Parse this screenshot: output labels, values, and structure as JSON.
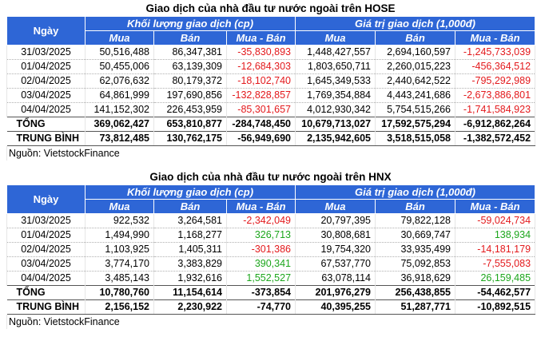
{
  "tables": [
    {
      "title": "Giao dịch của nhà đầu tư nước ngoài trên HOSE",
      "day_header": "Ngày",
      "group1": "Khối lượng giao dịch (cp)",
      "group2": "Giá trị giao dịch (1,000đ)",
      "sub": [
        "Mua",
        "Bán",
        "Mua - Bán",
        "Mua",
        "Bán",
        "Mua - Bán"
      ],
      "rows": [
        {
          "date": "31/03/2025",
          "v": [
            "50,516,488",
            "86,347,381",
            "-35,830,893",
            "1,448,427,557",
            "2,694,160,597",
            "-1,245,733,039"
          ]
        },
        {
          "date": "01/04/2025",
          "v": [
            "50,455,006",
            "63,139,309",
            "-12,684,303",
            "1,803,650,711",
            "2,260,015,223",
            "-456,364,512"
          ]
        },
        {
          "date": "02/04/2025",
          "v": [
            "62,076,632",
            "80,179,372",
            "-18,102,740",
            "1,645,349,533",
            "2,440,642,522",
            "-795,292,989"
          ]
        },
        {
          "date": "03/04/2025",
          "v": [
            "64,861,999",
            "197,690,856",
            "-132,828,857",
            "1,769,354,884",
            "4,443,241,686",
            "-2,673,886,801"
          ]
        },
        {
          "date": "04/04/2025",
          "v": [
            "141,152,302",
            "226,453,959",
            "-85,301,657",
            "4,012,930,342",
            "5,754,515,266",
            "-1,741,584,923"
          ]
        }
      ],
      "total": {
        "label": "TỔNG",
        "v": [
          "369,062,427",
          "653,810,877",
          "-284,748,450",
          "10,679,713,027",
          "17,592,575,294",
          "-6,912,862,264"
        ]
      },
      "avg": {
        "label": "TRUNG BÌNH",
        "v": [
          "73,812,485",
          "130,762,175",
          "-56,949,690",
          "2,135,942,605",
          "3,518,515,058",
          "-1,382,572,452"
        ]
      },
      "source": "Nguồn: VietstockFinance"
    },
    {
      "title": "Giao dịch của nhà đầu tư nước ngoài trên HNX",
      "day_header": "Ngày",
      "group1": "Khối lượng giao dịch (cp)",
      "group2": "Giá trị giao dịch (1,000đ)",
      "sub": [
        "Mua",
        "Bán",
        "Mua - Bán",
        "Mua",
        "Bán",
        "Mua - Bán"
      ],
      "rows": [
        {
          "date": "31/03/2025",
          "v": [
            "922,532",
            "3,264,581",
            "-2,342,049",
            "20,797,395",
            "79,822,128",
            "-59,024,734"
          ]
        },
        {
          "date": "01/04/2025",
          "v": [
            "1,494,990",
            "1,168,277",
            "326,713",
            "30,808,681",
            "30,669,747",
            "138,934"
          ]
        },
        {
          "date": "02/04/2025",
          "v": [
            "1,103,925",
            "1,405,311",
            "-301,386",
            "19,754,320",
            "33,935,499",
            "-14,181,179"
          ]
        },
        {
          "date": "03/04/2025",
          "v": [
            "3,774,170",
            "3,383,829",
            "390,341",
            "67,537,770",
            "75,092,853",
            "-7,555,083"
          ]
        },
        {
          "date": "04/04/2025",
          "v": [
            "3,485,143",
            "1,932,616",
            "1,552,527",
            "63,078,114",
            "36,918,629",
            "26,159,485"
          ]
        }
      ],
      "total": {
        "label": "TỔNG",
        "v": [
          "10,780,760",
          "11,154,614",
          "-373,854",
          "201,976,279",
          "256,438,855",
          "-54,462,577"
        ]
      },
      "avg": {
        "label": "TRUNG BÌNH",
        "v": [
          "2,156,152",
          "2,230,922",
          "-74,770",
          "40,395,255",
          "51,287,771",
          "-10,892,515"
        ]
      },
      "source": "Nguồn: VietstockFinance"
    }
  ],
  "colors": {
    "header_bg": "#2e66d6",
    "negative": "#e3191c",
    "positive": "#1ca61c"
  }
}
